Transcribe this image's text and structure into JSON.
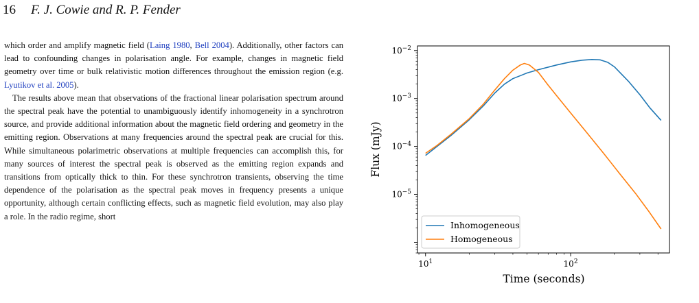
{
  "header": {
    "page_number": "16",
    "authors": "F. J. Cowie and R. P. Fender"
  },
  "paragraphs": [
    {
      "indent": false,
      "segments": [
        {
          "t": "which order and amplify magnetic field ("
        },
        {
          "t": "Laing 1980",
          "link": true
        },
        {
          "t": ", "
        },
        {
          "t": "Bell 2004",
          "link": true
        },
        {
          "t": "). Additionally, other factors can lead to confounding changes in polarisation angle. For example, changes in magnetic field geometry over time or bulk relativistic motion differences throughout the emission region (e.g. "
        },
        {
          "t": "Lyutikov et al. 2005",
          "link": true
        },
        {
          "t": ")."
        }
      ]
    },
    {
      "indent": true,
      "segments": [
        {
          "t": "The results above mean that observations of the fractional linear polarisation spectrum around the spectral peak have the potential to unambiguously identify inhomogeneity in a synchrotron source, and provide additional information about the magnetic field ordering and geometry in the emitting region. Observations at many frequencies around the spectral peak are crucial for this. While simultaneous polarimetric observations at multiple frequencies can accomplish this, for many sources of interest the spectral peak is observed as the emitting region expands and transitions from optically thick to thin. For these synchrotron transients, observing the time dependence of the polarisation as the spectral peak moves in frequency presents a unique opportunity, although certain conflicting effects, such as magnetic field evolution, may also play a role. In the radio regime, short"
        }
      ]
    }
  ],
  "chart_data": {
    "type": "line",
    "xlabel": "Time (seconds)",
    "ylabel": "Flux (mJy)",
    "x_scale": "log",
    "y_scale": "log",
    "xlim": [
      8.8,
      480
    ],
    "ylim": [
      6e-07,
      0.0125
    ],
    "x_ticks": [
      {
        "value": 10,
        "base": "10",
        "exp": "1"
      },
      {
        "value": 100,
        "base": "10",
        "exp": "2"
      }
    ],
    "y_ticks": [
      {
        "value": 1e-05,
        "base": "10",
        "exp": "−5"
      },
      {
        "value": 0.0001,
        "base": "10",
        "exp": "−4"
      },
      {
        "value": 0.001,
        "base": "10",
        "exp": "−3"
      },
      {
        "value": 0.01,
        "base": "10",
        "exp": "−2"
      }
    ],
    "grid": false,
    "legend_position": "lower-left",
    "series": [
      {
        "name": "Inhomogeneous",
        "color": "#1f77b4",
        "x": [
          10,
          12,
          15,
          20,
          25,
          30,
          35,
          40,
          50,
          60,
          80,
          100,
          120,
          140,
          160,
          180,
          200,
          250,
          300,
          350,
          420
        ],
        "y": [
          6.5e-05,
          0.0001,
          0.00017,
          0.00036,
          0.0007,
          0.0013,
          0.002,
          0.0026,
          0.0034,
          0.004,
          0.005,
          0.0058,
          0.0063,
          0.0065,
          0.0064,
          0.0057,
          0.0046,
          0.0023,
          0.0012,
          0.00065,
          0.00035
        ]
      },
      {
        "name": "Homogeneous",
        "color": "#ff7f0e",
        "x": [
          10,
          12,
          15,
          20,
          25,
          30,
          35,
          40,
          45,
          48,
          52,
          60,
          70,
          80,
          100,
          130,
          170,
          220,
          280,
          350,
          420
        ],
        "y": [
          7.2e-05,
          0.000105,
          0.00018,
          0.00038,
          0.00076,
          0.0015,
          0.0026,
          0.0039,
          0.005,
          0.0054,
          0.005,
          0.0035,
          0.0019,
          0.00115,
          0.0005,
          0.00019,
          7e-05,
          2.6e-05,
          1.05e-05,
          4.2e-06,
          1.9e-06
        ]
      }
    ]
  }
}
